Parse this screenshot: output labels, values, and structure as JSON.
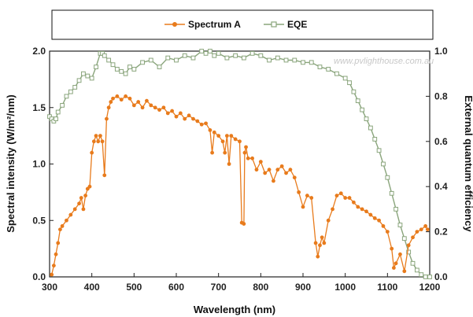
{
  "chart_data": {
    "type": "line",
    "watermark": "www.pvlighthouse.com.au",
    "xlabel": "Wavelength (nm)",
    "ylabel": "Spectral intensity (W/m²/nm)",
    "y2label": "External quantum efficiency",
    "xlim": [
      300,
      1200
    ],
    "ylim": [
      0,
      2.0
    ],
    "y2lim": [
      0,
      1.0
    ],
    "x_ticks": [
      "300",
      "400",
      "500",
      "600",
      "700",
      "800",
      "900",
      "1000",
      "1100",
      "1200"
    ],
    "y_ticks": [
      "0.0",
      "0.5",
      "1.0",
      "1.5",
      "2.0"
    ],
    "y2_ticks": [
      "0.0",
      "0.2",
      "0.4",
      "0.6",
      "0.8",
      "1.0"
    ],
    "grid": false,
    "legend_position": "top",
    "series": [
      {
        "name": "Spectrum A",
        "axis": "left",
        "color": "#e87b1c",
        "marker": "filled-circle",
        "x": [
          305,
          310,
          315,
          320,
          325,
          330,
          340,
          350,
          360,
          370,
          375,
          380,
          385,
          390,
          395,
          400,
          405,
          410,
          415,
          420,
          425,
          430,
          435,
          440,
          445,
          450,
          460,
          470,
          480,
          490,
          500,
          510,
          520,
          530,
          540,
          550,
          560,
          570,
          580,
          590,
          600,
          610,
          620,
          630,
          640,
          650,
          660,
          670,
          680,
          685,
          690,
          700,
          710,
          715,
          720,
          725,
          730,
          740,
          750,
          755,
          760,
          762,
          765,
          770,
          780,
          790,
          800,
          810,
          820,
          830,
          840,
          850,
          860,
          870,
          880,
          890,
          900,
          910,
          920,
          930,
          935,
          940,
          945,
          950,
          960,
          970,
          980,
          990,
          1000,
          1010,
          1020,
          1030,
          1040,
          1050,
          1060,
          1070,
          1080,
          1090,
          1100,
          1110,
          1115,
          1120,
          1130,
          1140,
          1150,
          1160,
          1170,
          1180,
          1190,
          1195
        ],
        "y": [
          0.02,
          0.1,
          0.2,
          0.3,
          0.42,
          0.45,
          0.5,
          0.55,
          0.6,
          0.65,
          0.7,
          0.6,
          0.72,
          0.78,
          0.8,
          1.1,
          1.2,
          1.25,
          1.2,
          1.25,
          1.2,
          0.9,
          1.4,
          1.5,
          1.55,
          1.58,
          1.6,
          1.57,
          1.6,
          1.58,
          1.52,
          1.55,
          1.5,
          1.56,
          1.52,
          1.5,
          1.48,
          1.5,
          1.45,
          1.47,
          1.42,
          1.45,
          1.4,
          1.43,
          1.4,
          1.38,
          1.35,
          1.36,
          1.3,
          1.1,
          1.28,
          1.25,
          1.2,
          1.1,
          1.25,
          1.0,
          1.25,
          1.22,
          1.2,
          0.48,
          0.47,
          1.1,
          1.15,
          1.05,
          1.05,
          0.95,
          1.02,
          0.92,
          0.95,
          0.85,
          0.95,
          0.98,
          0.92,
          0.95,
          0.88,
          0.75,
          0.62,
          0.72,
          0.7,
          0.3,
          0.18,
          0.28,
          0.35,
          0.3,
          0.5,
          0.6,
          0.72,
          0.74,
          0.7,
          0.7,
          0.66,
          0.62,
          0.6,
          0.58,
          0.55,
          0.52,
          0.5,
          0.45,
          0.4,
          0.25,
          0.08,
          0.12,
          0.2,
          0.05,
          0.28,
          0.35,
          0.4,
          0.42,
          0.45,
          0.42
        ]
      },
      {
        "name": "EQE",
        "axis": "right",
        "color": "#8aa57c",
        "marker": "open-square",
        "x": [
          300,
          305,
          310,
          315,
          320,
          330,
          340,
          350,
          360,
          370,
          380,
          390,
          400,
          410,
          420,
          425,
          430,
          440,
          450,
          460,
          470,
          480,
          490,
          500,
          520,
          540,
          560,
          580,
          600,
          620,
          640,
          660,
          670,
          680,
          690,
          700,
          720,
          740,
          760,
          780,
          800,
          820,
          840,
          860,
          880,
          900,
          920,
          940,
          960,
          980,
          1000,
          1010,
          1020,
          1030,
          1040,
          1050,
          1060,
          1070,
          1080,
          1090,
          1100,
          1110,
          1120,
          1130,
          1140,
          1150,
          1160,
          1170,
          1180,
          1190,
          1200
        ],
        "y": [
          0.71,
          0.7,
          0.69,
          0.7,
          0.73,
          0.76,
          0.8,
          0.82,
          0.84,
          0.87,
          0.9,
          0.89,
          0.88,
          0.93,
          0.99,
          0.99,
          0.98,
          0.96,
          0.94,
          0.92,
          0.91,
          0.9,
          0.93,
          0.92,
          0.95,
          0.96,
          0.93,
          0.97,
          0.96,
          0.98,
          0.97,
          1.0,
          0.99,
          1.0,
          0.98,
          0.99,
          0.97,
          0.98,
          0.97,
          0.99,
          0.98,
          0.96,
          0.97,
          0.96,
          0.96,
          0.95,
          0.95,
          0.93,
          0.92,
          0.9,
          0.88,
          0.86,
          0.82,
          0.78,
          0.74,
          0.7,
          0.66,
          0.61,
          0.56,
          0.5,
          0.44,
          0.37,
          0.3,
          0.23,
          0.17,
          0.11,
          0.06,
          0.03,
          0.01,
          0.0,
          0.0
        ]
      }
    ]
  }
}
